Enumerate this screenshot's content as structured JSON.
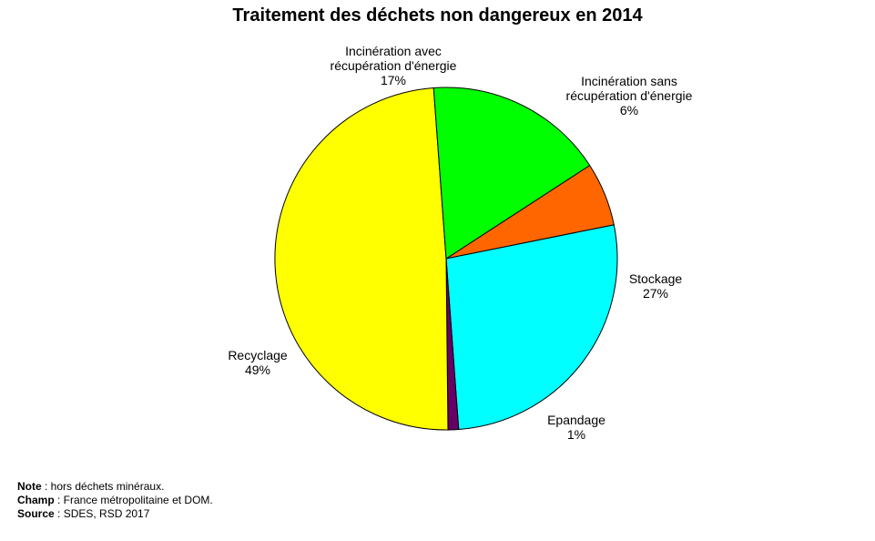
{
  "chart_data": {
    "type": "pie",
    "title": "Traitement des déchets non dangereux en 2014",
    "slices": [
      {
        "name": "Incinération sans récupération d'énergie",
        "lines": [
          "Incinération sans",
          "récupération d'énergie"
        ],
        "value": 6,
        "pct_label": "6%",
        "color": "#ff6600"
      },
      {
        "name": "Stockage",
        "lines": [
          "Stockage"
        ],
        "value": 27,
        "pct_label": "27%",
        "color": "#00ffff"
      },
      {
        "name": "Epandage",
        "lines": [
          "Epandage"
        ],
        "value": 1,
        "pct_label": "1%",
        "color": "#660066"
      },
      {
        "name": "Recyclage",
        "lines": [
          "Recyclage"
        ],
        "value": 49,
        "pct_label": "49%",
        "color": "#ffff00"
      },
      {
        "name": "Incinération avec récupération d'énergie",
        "lines": [
          "Incinération avec",
          "récupération d'énergie"
        ],
        "value": 17,
        "pct_label": "17%",
        "color": "#00ff00"
      }
    ]
  },
  "footnotes": {
    "note_label": "Note",
    "note_text": " : hors déchets minéraux.",
    "champ_label": "Champ",
    "champ_text": " : France métropolitaine et DOM.",
    "source_label": "Source",
    "source_text": " : SDES, RSD 2017"
  }
}
